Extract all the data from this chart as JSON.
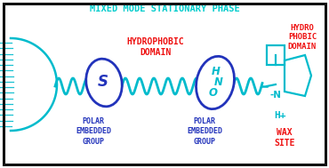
{
  "title": "MIXED MODE STATIONARY PHASE",
  "title_color": "#00CCCC",
  "title_fontsize": 7.5,
  "background_color": "#FFFFFF",
  "border_color": "#111111",
  "cyan": "#00BBCC",
  "blue": "#2233BB",
  "red": "#EE1111",
  "labels": {
    "polar1": "POLAR\nEMBEDDED\nGROUP",
    "hydro1": "HYDROPHOBIC\nDOMAIN",
    "polar2": "POLAR\nEMBEDDED\nGROUP",
    "hydro2": "HYDRO\nPHOBIC\nDOMAIN",
    "wax_h": "H+",
    "wax": "WAX\nSITE"
  },
  "figsize": [
    3.7,
    1.89
  ],
  "dpi": 100
}
